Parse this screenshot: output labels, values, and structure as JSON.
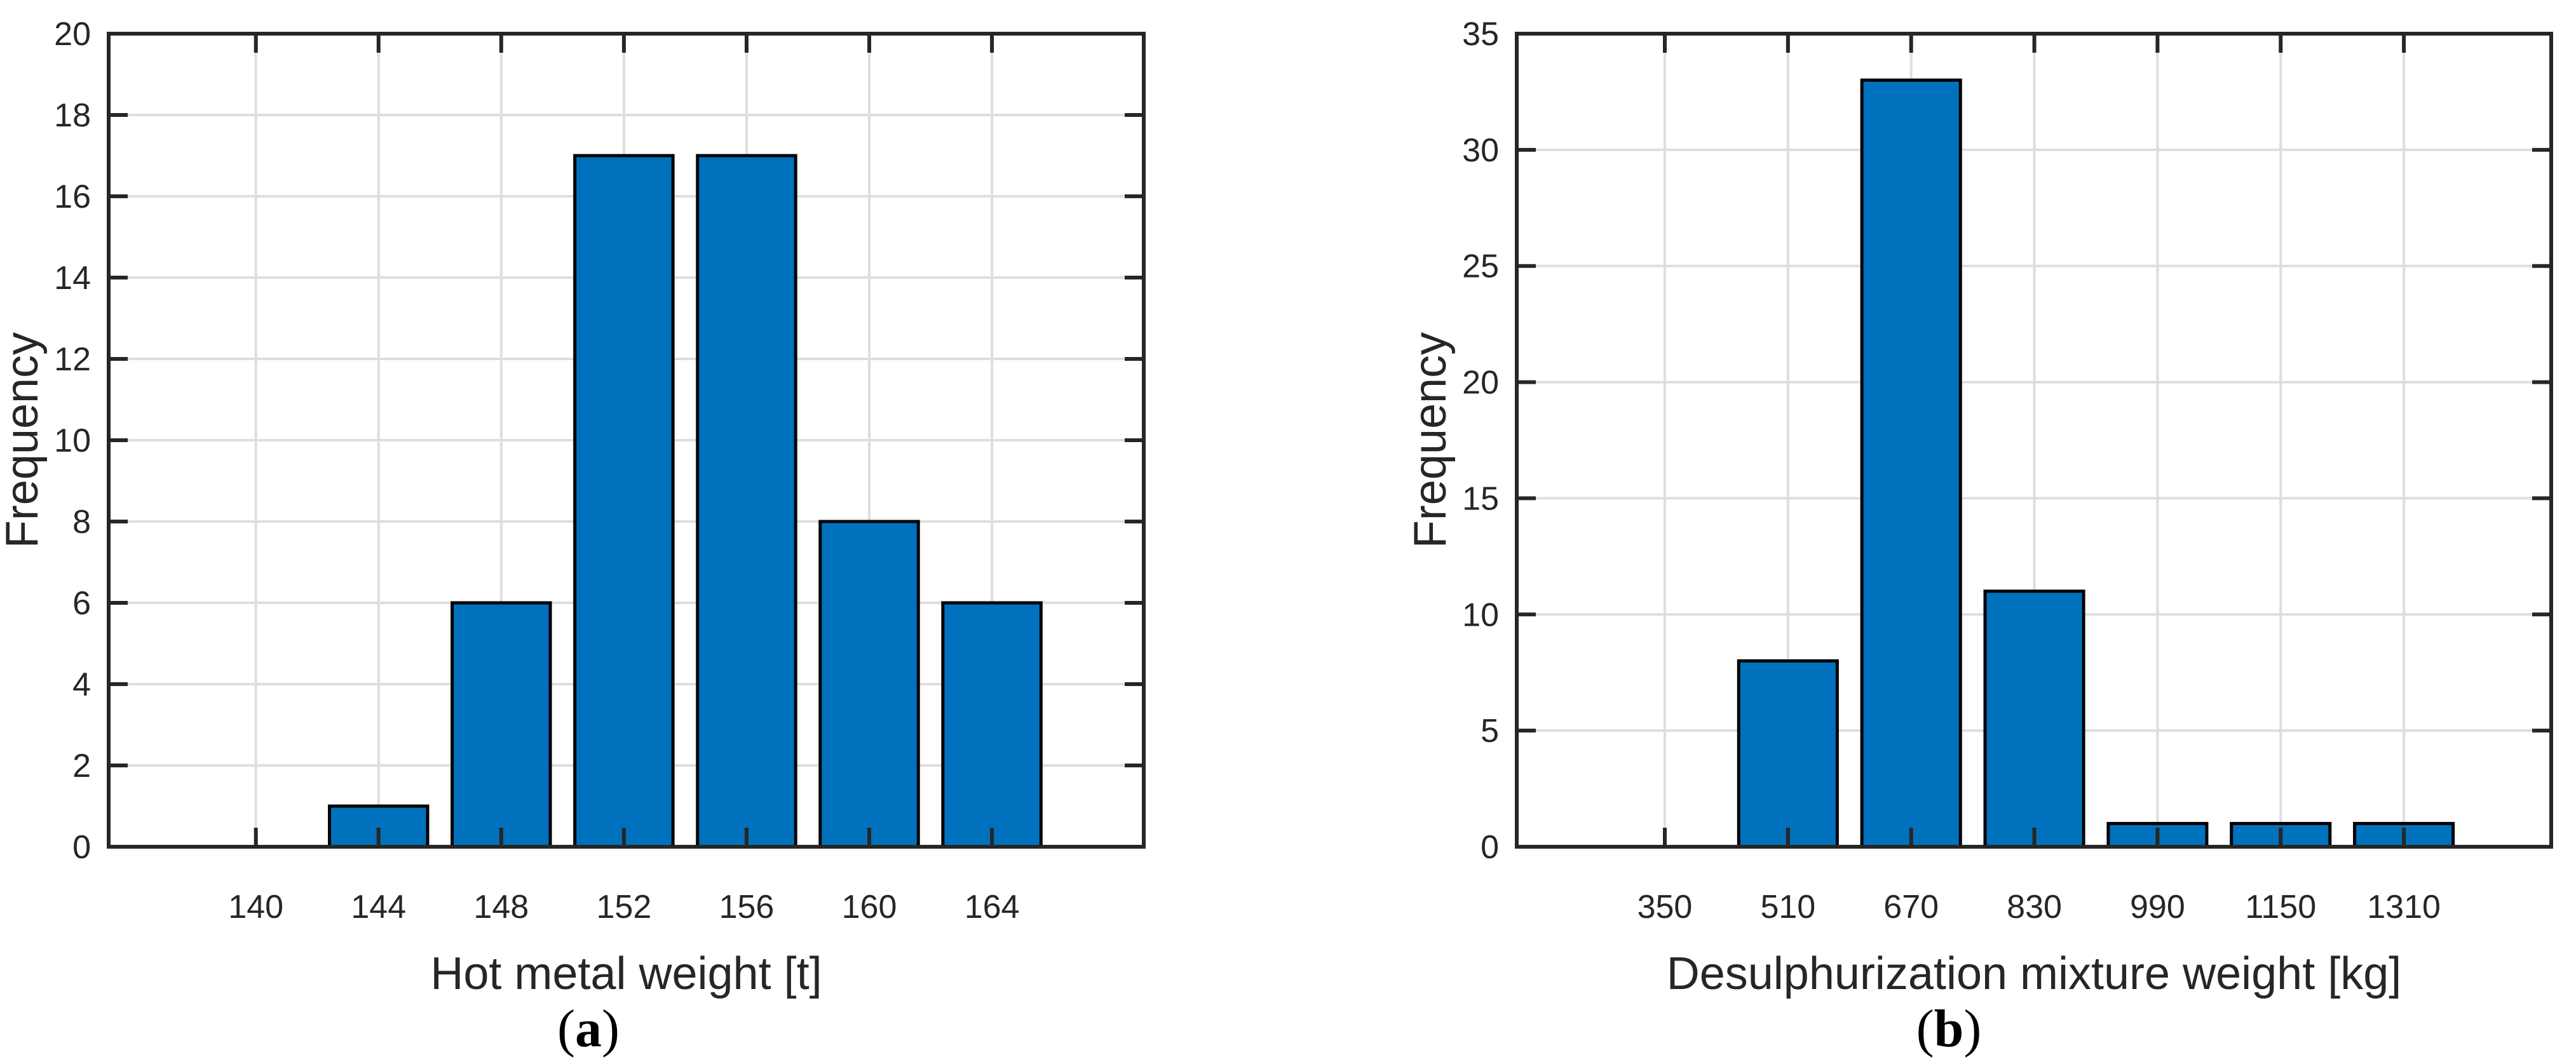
{
  "figure": {
    "background": "#ffffff"
  },
  "style": {
    "bar_fill": "#0072BD",
    "bar_edge": "#000000",
    "grid_color": "#DEDEDE",
    "axis_color": "#262626",
    "text_color": "#262626"
  },
  "chart_data": [
    {
      "id": "a",
      "type": "bar",
      "title": "",
      "xlabel": "Hot metal weight [t]",
      "ylabel": "Frequency",
      "categories": [
        140,
        144,
        148,
        152,
        156,
        160,
        164
      ],
      "values": [
        0,
        1,
        6,
        17,
        17,
        8,
        6
      ],
      "bin_width": 4,
      "bar_width_fraction": 0.8,
      "xlim": [
        135.2,
        168.95
      ],
      "ylim": [
        0,
        20
      ],
      "xticks": [
        140,
        144,
        148,
        152,
        156,
        160,
        164
      ],
      "xtick_labels": [
        "140",
        "144",
        "148",
        "152",
        "156",
        "160",
        "164"
      ],
      "yticks": [
        0,
        2,
        4,
        6,
        8,
        10,
        12,
        14,
        16,
        18,
        20
      ],
      "ytick_labels": [
        "0",
        "2",
        "4",
        "6",
        "8",
        "10",
        "12",
        "14",
        "16",
        "18",
        "20"
      ],
      "grid": true,
      "legend": "none",
      "caption_open": "(",
      "caption_letter": "a",
      "caption_close": ")"
    },
    {
      "id": "b",
      "type": "bar",
      "title": "",
      "xlabel": "Desulphurization mixture weight [kg]",
      "ylabel": "Frequency",
      "categories": [
        350,
        510,
        670,
        830,
        990,
        1150,
        1310
      ],
      "values": [
        0,
        8,
        33,
        11,
        1,
        1,
        1
      ],
      "bin_width": 160,
      "bar_width_fraction": 0.8,
      "xlim": [
        157.7,
        1501.4
      ],
      "ylim": [
        0,
        35
      ],
      "xticks": [
        350,
        510,
        670,
        830,
        990,
        1150,
        1310
      ],
      "xtick_labels": [
        "350",
        "510",
        "670",
        "830",
        "990",
        "1150",
        "1310"
      ],
      "yticks": [
        0,
        5,
        10,
        15,
        20,
        25,
        30,
        35
      ],
      "ytick_labels": [
        "0",
        "5",
        "10",
        "15",
        "20",
        "25",
        "30",
        "35"
      ],
      "grid": true,
      "legend": "none",
      "caption_open": "(",
      "caption_letter": "b",
      "caption_close": ")"
    }
  ]
}
